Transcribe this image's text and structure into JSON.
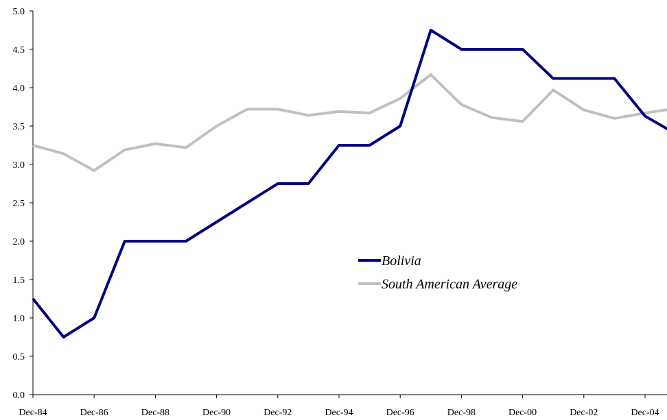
{
  "chart_data": {
    "type": "line",
    "title": "",
    "xlabel": "",
    "ylabel": "",
    "x": [
      "Dec-84",
      "Dec-85",
      "Dec-86",
      "Dec-87",
      "Dec-88",
      "Dec-89",
      "Dec-90",
      "Dec-91",
      "Dec-92",
      "Dec-93",
      "Dec-94",
      "Dec-95",
      "Dec-96",
      "Dec-97",
      "Dec-98",
      "Dec-99",
      "Dec-00",
      "Dec-01",
      "Dec-02",
      "Dec-03",
      "Dec-04",
      "Dec-05"
    ],
    "x_tick_labels": [
      "Dec-84",
      "Dec-86",
      "Dec-88",
      "Dec-90",
      "Dec-92",
      "Dec-94",
      "Dec-96",
      "Dec-98",
      "Dec-00",
      "Dec-02",
      "Dec-04"
    ],
    "y_ticks": [
      "0.0",
      "0.5",
      "1.0",
      "1.5",
      "2.0",
      "2.5",
      "3.0",
      "3.5",
      "4.0",
      "4.5",
      "5.0"
    ],
    "ylim": [
      0,
      5
    ],
    "grid": false,
    "legend_position": "center-right",
    "series": [
      {
        "name": "Bolivia",
        "color": "#000080",
        "values": [
          1.25,
          0.75,
          1.0,
          2.0,
          2.0,
          2.0,
          2.25,
          2.5,
          2.75,
          2.75,
          3.25,
          3.25,
          3.5,
          4.75,
          4.5,
          4.5,
          4.5,
          4.12,
          4.12,
          4.12,
          3.63,
          3.4
        ]
      },
      {
        "name": "South American Average",
        "color": "#c0c0c0",
        "values": [
          3.25,
          3.14,
          2.92,
          3.19,
          3.27,
          3.22,
          3.5,
          3.72,
          3.72,
          3.64,
          3.69,
          3.67,
          3.86,
          4.17,
          3.78,
          3.61,
          3.56,
          3.97,
          3.71,
          3.6,
          3.67,
          3.73
        ]
      }
    ]
  }
}
